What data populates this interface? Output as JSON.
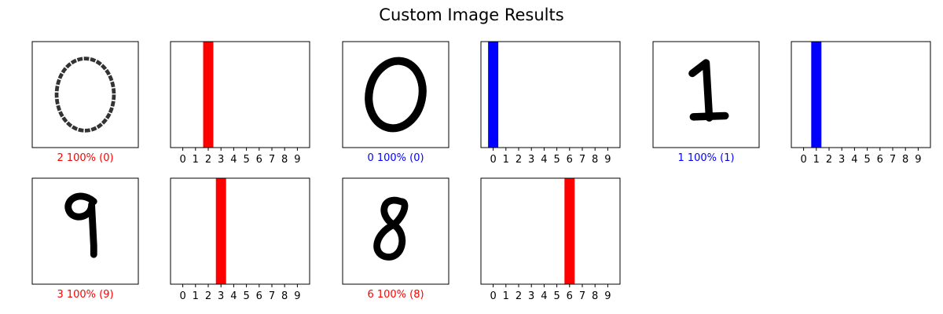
{
  "figure": {
    "title": "Custom Image Results"
  },
  "colors": {
    "correct": "#0000ff",
    "incorrect": "#ff0000",
    "other_bar": "#777777",
    "ink": "#000000",
    "frame": "#000000",
    "background": "#ffffff"
  },
  "chart_data": [
    {
      "type": "image",
      "content": "handwritten digit 0 (thin, grey)",
      "prediction_label": "2 100% (0)",
      "predicted": 2,
      "confidence_percent": 100,
      "true_label": 0,
      "correct": false
    },
    {
      "type": "bar",
      "categories": [
        "0",
        "1",
        "2",
        "3",
        "4",
        "5",
        "6",
        "7",
        "8",
        "9"
      ],
      "values": [
        0,
        0,
        1,
        0,
        0,
        0,
        0,
        0,
        0,
        0
      ],
      "ylim": [
        0,
        1
      ],
      "predicted": 2,
      "true_label": 0,
      "highlight_color": "incorrect",
      "xticks_visible": true,
      "yticks_visible": false,
      "grid": false
    },
    {
      "type": "image",
      "content": "handwritten digit 0 (bold)",
      "prediction_label": "0 100% (0)",
      "predicted": 0,
      "confidence_percent": 100,
      "true_label": 0,
      "correct": true
    },
    {
      "type": "bar",
      "categories": [
        "0",
        "1",
        "2",
        "3",
        "4",
        "5",
        "6",
        "7",
        "8",
        "9"
      ],
      "values": [
        1,
        0,
        0,
        0,
        0,
        0,
        0,
        0,
        0,
        0
      ],
      "ylim": [
        0,
        1
      ],
      "predicted": 0,
      "true_label": 0,
      "highlight_color": "correct",
      "xticks_visible": true,
      "yticks_visible": false,
      "grid": false
    },
    {
      "type": "image",
      "content": "handwritten digit 1",
      "prediction_label": "1 100% (1)",
      "predicted": 1,
      "confidence_percent": 100,
      "true_label": 1,
      "correct": true
    },
    {
      "type": "bar",
      "categories": [
        "0",
        "1",
        "2",
        "3",
        "4",
        "5",
        "6",
        "7",
        "8",
        "9"
      ],
      "values": [
        0,
        1,
        0,
        0,
        0,
        0,
        0,
        0,
        0,
        0
      ],
      "ylim": [
        0,
        1
      ],
      "predicted": 1,
      "true_label": 1,
      "highlight_color": "correct",
      "xticks_visible": true,
      "yticks_visible": false,
      "grid": false
    },
    {
      "type": "image",
      "content": "handwritten digit 9",
      "prediction_label": "3 100% (9)",
      "predicted": 3,
      "confidence_percent": 100,
      "true_label": 9,
      "correct": false
    },
    {
      "type": "bar",
      "categories": [
        "0",
        "1",
        "2",
        "3",
        "4",
        "5",
        "6",
        "7",
        "8",
        "9"
      ],
      "values": [
        0,
        0,
        0,
        1,
        0,
        0,
        0,
        0,
        0,
        0
      ],
      "ylim": [
        0,
        1
      ],
      "predicted": 3,
      "true_label": 9,
      "highlight_color": "incorrect",
      "xticks_visible": true,
      "yticks_visible": false,
      "grid": false
    },
    {
      "type": "image",
      "content": "handwritten digit 8",
      "prediction_label": "6 100% (8)",
      "predicted": 6,
      "confidence_percent": 100,
      "true_label": 8,
      "correct": false
    },
    {
      "type": "bar",
      "categories": [
        "0",
        "1",
        "2",
        "3",
        "4",
        "5",
        "6",
        "7",
        "8",
        "9"
      ],
      "values": [
        0,
        0,
        0,
        0,
        0,
        0,
        1,
        0,
        0,
        0
      ],
      "ylim": [
        0,
        1
      ],
      "predicted": 6,
      "true_label": 8,
      "highlight_color": "incorrect",
      "xticks_visible": true,
      "yticks_visible": false,
      "grid": false
    }
  ]
}
